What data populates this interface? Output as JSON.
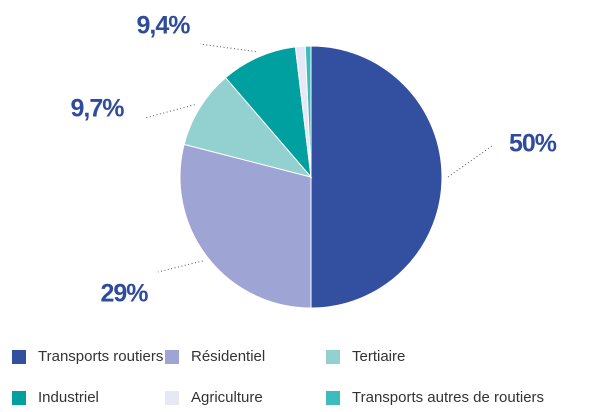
{
  "chart_data": {
    "type": "pie",
    "categories": [
      "Transports routiers",
      "Résidentiel",
      "Tertiaire",
      "Industriel",
      "Agriculture",
      "Transports autres de routiers"
    ],
    "values": [
      50,
      29,
      9.7,
      9.4,
      1.2,
      0.7
    ],
    "value_labels": [
      "50%",
      "29%",
      "9,7%",
      "9,4%",
      null,
      null
    ],
    "colors": [
      "#3350a0",
      "#9ea4d4",
      "#93d0d0",
      "#00a0a0",
      "#e6e8f5",
      "#3cbcbc"
    ]
  }
}
